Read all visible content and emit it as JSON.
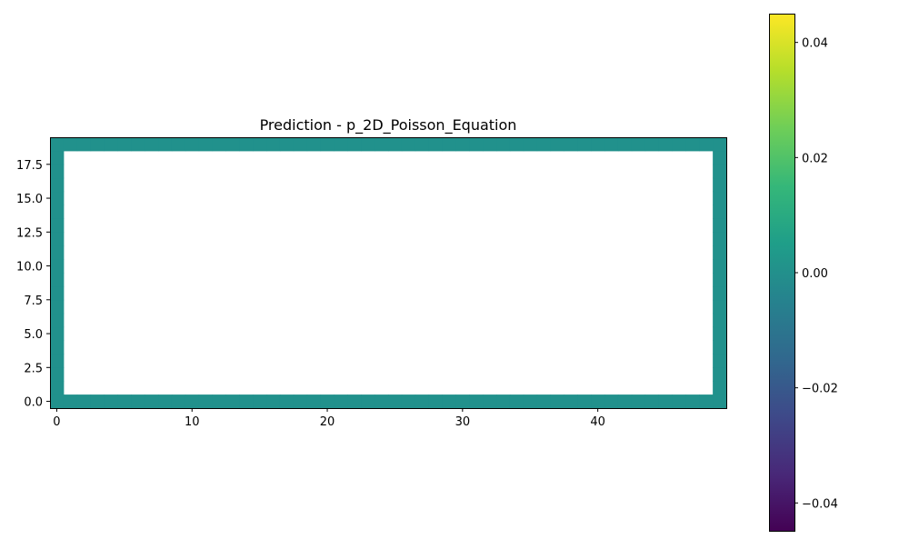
{
  "chart_data": {
    "type": "heatmap",
    "title": "Prediction - p_2D_Poisson_Equation",
    "xlabel": "",
    "ylabel": "",
    "xlim": [
      -0.5,
      49.5
    ],
    "ylim": [
      -0.5,
      19.5
    ],
    "grid": false,
    "origin": "lower",
    "cmap": "viridis",
    "grid_shape": [
      20,
      50
    ],
    "boundary_value": 0.0,
    "interior": "NaN (blank)",
    "fill_color": "#21918c",
    "x_ticks": [
      0,
      10,
      20,
      30,
      40
    ],
    "x_tick_labels": [
      "0",
      "10",
      "20",
      "30",
      "40"
    ],
    "y_ticks": [
      0.0,
      2.5,
      5.0,
      7.5,
      10.0,
      12.5,
      15.0,
      17.5
    ],
    "y_tick_labels": [
      "0.0",
      "2.5",
      "5.0",
      "7.5",
      "10.0",
      "12.5",
      "15.0",
      "17.5"
    ],
    "colorbar": {
      "vmin": -0.045,
      "vmax": 0.045,
      "ticks": [
        -0.04,
        -0.02,
        0.0,
        0.02,
        0.04
      ],
      "tick_labels": [
        "−0.04",
        "−0.02",
        "0.00",
        "0.02",
        "0.04"
      ],
      "colors": [
        "#440154",
        "#482878",
        "#3e4989",
        "#31688e",
        "#26828e",
        "#1f9e89",
        "#35b779",
        "#6ece58",
        "#b5de2b",
        "#fde725"
      ]
    }
  }
}
